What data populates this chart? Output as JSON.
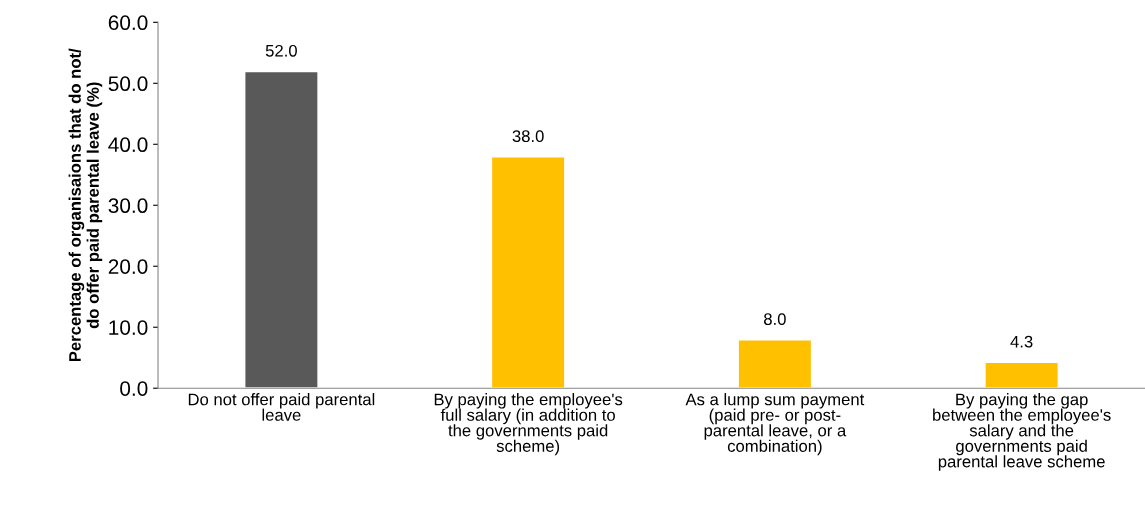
{
  "chart_data": {
    "type": "bar",
    "categories": [
      "Do not offer paid parental\nleave",
      "By paying the employee's\nfull salary (in addition to\nthe governments paid\nscheme)",
      "As a lump sum payment\n(paid pre- or post-\nparental leave, or a\ncombination)",
      "By paying the gap\nbetween the employee's\nsalary and the\ngovernments paid\nparental leave scheme"
    ],
    "values": [
      52.0,
      38.0,
      8.0,
      4.3
    ],
    "colors": [
      "#595959",
      "#ffc000",
      "#ffc000",
      "#ffc000"
    ],
    "value_labels": [
      "52.0",
      "38.0",
      "8.0",
      "4.3"
    ],
    "ylabel": "Percentage of organisaions that do not/\ndo offer paid parental leave (%)",
    "ylim": [
      0,
      60
    ],
    "yticks": [
      {
        "value": 0,
        "label": "0.0"
      },
      {
        "value": 10,
        "label": "10.0"
      },
      {
        "value": 20,
        "label": "20.0"
      },
      {
        "value": 30,
        "label": "30.0"
      },
      {
        "value": 40,
        "label": "40.0"
      },
      {
        "value": 50,
        "label": "50.0"
      },
      {
        "value": 60,
        "label": "60.0"
      }
    ],
    "grid": false
  }
}
